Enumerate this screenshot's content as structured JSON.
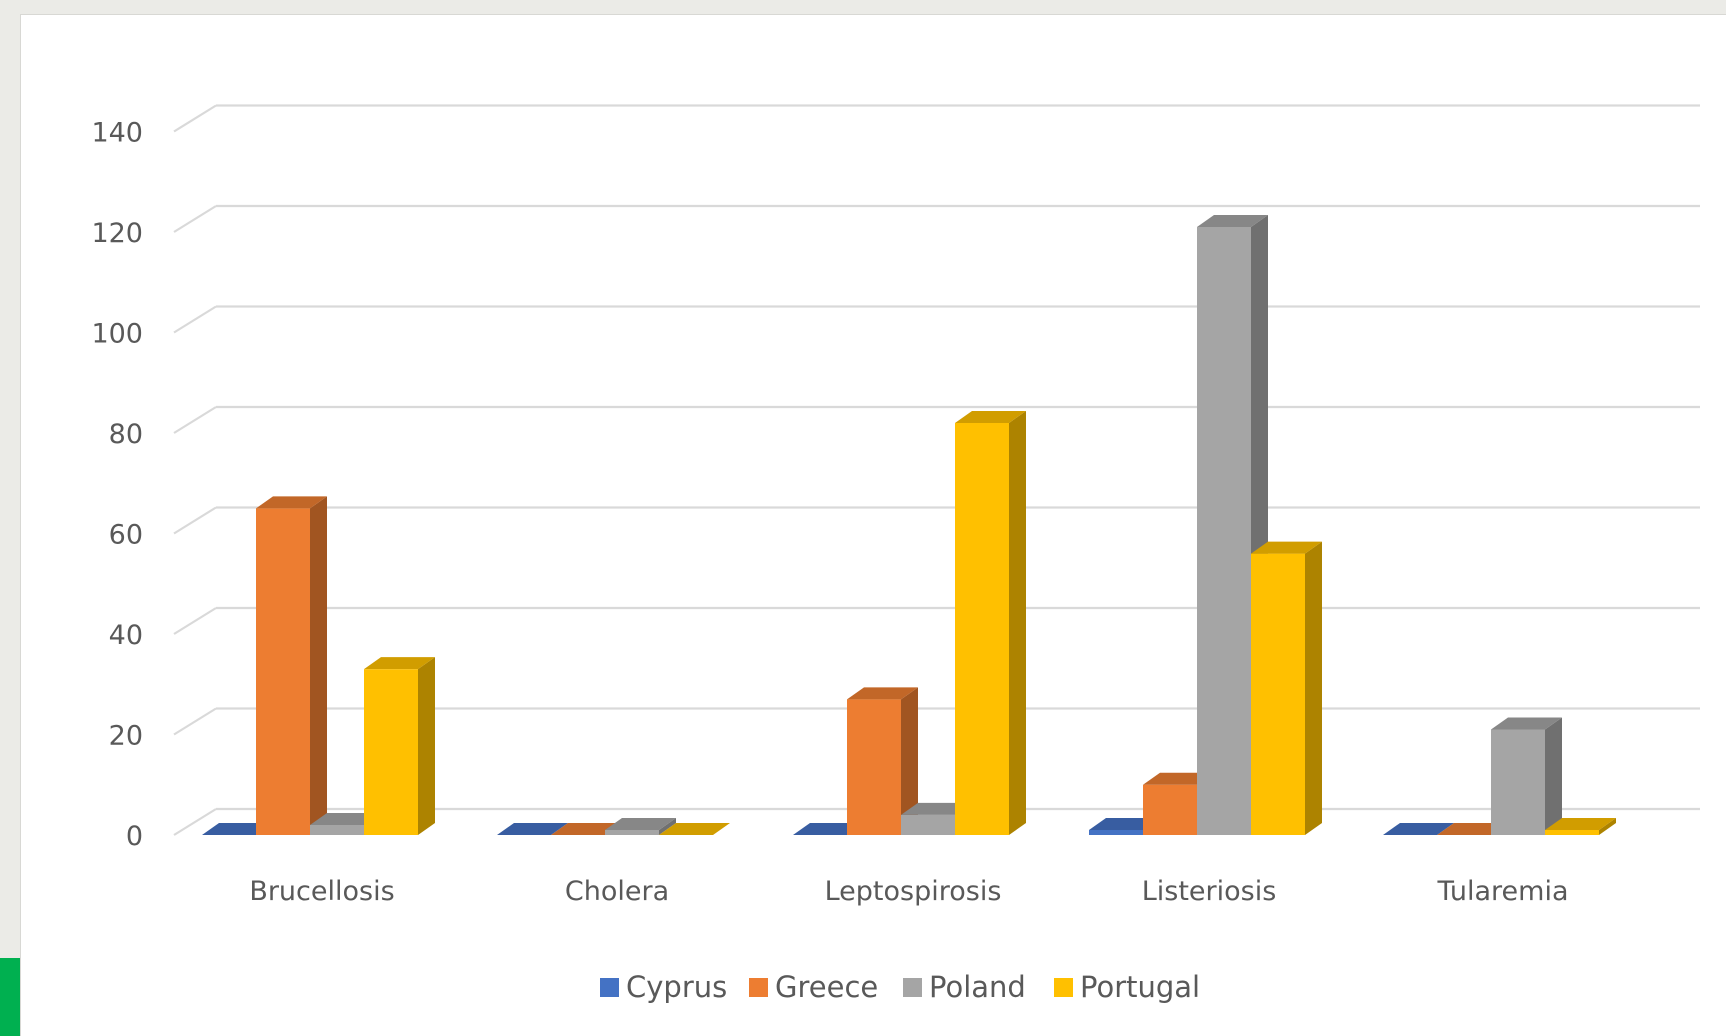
{
  "chart_data": {
    "type": "bar",
    "style": "3d-clustered-column",
    "title": "",
    "xlabel": "",
    "ylabel": "",
    "categories": [
      "Brucellosis",
      "Cholera",
      "Leptospirosis",
      "Listeriosis",
      "Tularemia"
    ],
    "series": [
      {
        "name": "Cyprus",
        "color": "#4472c4",
        "values": [
          0,
          0,
          0,
          1,
          0
        ]
      },
      {
        "name": "Greece",
        "color": "#ed7d31",
        "values": [
          65,
          0,
          27,
          10,
          0
        ]
      },
      {
        "name": "Poland",
        "color": "#a5a5a5",
        "values": [
          2,
          1,
          4,
          121,
          21
        ]
      },
      {
        "name": "Portugal",
        "color": "#ffc000",
        "values": [
          33,
          0,
          82,
          56,
          1
        ]
      }
    ],
    "ylim": [
      0,
      140
    ],
    "yticks": [
      0,
      20,
      40,
      60,
      80,
      100,
      120,
      140
    ],
    "grid": true,
    "legend_position": "bottom"
  }
}
